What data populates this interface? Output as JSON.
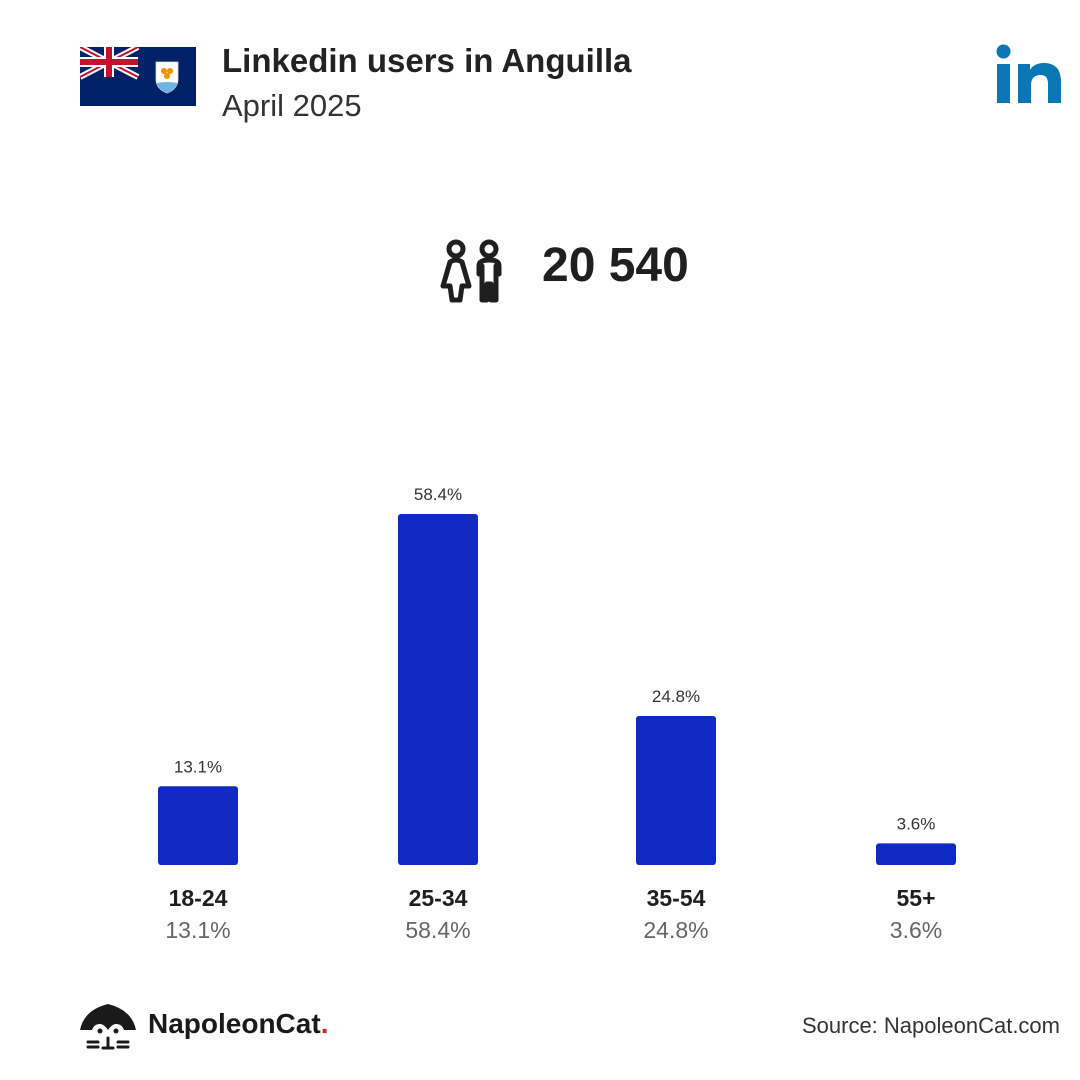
{
  "header": {
    "title": "Linkedin users in Anguilla",
    "subtitle": "April 2025"
  },
  "icons": {
    "flag": "anguilla-flag-icon",
    "platform": "linkedin-logo-icon",
    "people": "people-icon",
    "brand": "napoleoncat-logo-icon"
  },
  "colors": {
    "bar": "#0f29c2",
    "linkedin": "#0a76b4",
    "flag_blue": "#012169",
    "brand_dot": "#e2231a"
  },
  "summary": {
    "total_users": "20 540"
  },
  "chart_data": {
    "type": "bar",
    "title": "",
    "xlabel": "",
    "ylabel": "",
    "categories": [
      "18-24",
      "25-34",
      "35-54",
      "55+"
    ],
    "values": [
      13.1,
      58.4,
      24.8,
      3.6
    ],
    "value_labels": [
      "13.1%",
      "58.4%",
      "24.8%",
      "3.6%"
    ],
    "ylim": [
      0,
      58.4
    ],
    "grid": false
  },
  "footer": {
    "brand_name": "NapoleonCat",
    "brand_dot": ".",
    "source": "Source: NapoleonCat.com"
  }
}
